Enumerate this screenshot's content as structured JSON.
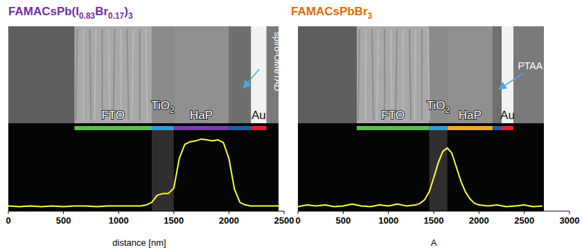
{
  "chart_data": [
    {
      "type": "line",
      "title": [
        {
          "text": "FAMACsPb(I",
          "sub": false
        },
        {
          "text": "0.83",
          "sub": true
        },
        {
          "text": "Br",
          "sub": false
        },
        {
          "text": "0.17",
          "sub": true
        },
        {
          "text": ")",
          "sub": false
        },
        {
          "text": "3",
          "sub": true
        }
      ],
      "title_color": "#7030a0",
      "x_label": "distance [nm]",
      "xlim": [
        0,
        2500
      ],
      "xticks": [
        0,
        500,
        1000,
        1500,
        2000,
        2500
      ],
      "ylim": [
        0,
        100
      ],
      "tick_labels": "x",
      "x": [
        0,
        100,
        200,
        300,
        400,
        500,
        600,
        700,
        800,
        900,
        1000,
        1100,
        1200,
        1250,
        1300,
        1350,
        1400,
        1450,
        1500,
        1550,
        1600,
        1650,
        1700,
        1750,
        1800,
        1850,
        1900,
        1950,
        2000,
        2050,
        2100,
        2150,
        2200,
        2300,
        2400,
        2450
      ],
      "series": [
        {
          "color": "#ffff33",
          "values": [
            6,
            5,
            6,
            5,
            6,
            5,
            6,
            6,
            5,
            6,
            6,
            6,
            6,
            7,
            10,
            18,
            20,
            20,
            26,
            60,
            76,
            79,
            80,
            82,
            81,
            80,
            81,
            78,
            60,
            25,
            10,
            7,
            6,
            6,
            6,
            6
          ]
        }
      ],
      "layers": [
        {
          "label": [
            {
              "text": "FTO",
              "sub": false
            }
          ],
          "color": "#5cc14a",
          "start": 600,
          "end": 1300
        },
        {
          "label": [
            {
              "text": "TiO",
              "sub": false
            },
            {
              "text": "2",
              "sub": true
            }
          ],
          "color": "#2e9fdc",
          "start": 1300,
          "end": 1500
        },
        {
          "label": [
            {
              "text": "HaP",
              "sub": false
            }
          ],
          "color": "#7a3bb0",
          "start": 1500,
          "end": 2000
        },
        {
          "label": [
            {
              "text": "spiro-OMeTAD",
              "sub": false
            }
          ],
          "label_style": "vertical_callout",
          "color": "#1f5fa8",
          "start": 2000,
          "end": 2200
        },
        {
          "label": [
            {
              "text": "Au",
              "sub": false
            }
          ],
          "color": "#e8202a",
          "start": 2200,
          "end": 2340
        }
      ]
    },
    {
      "type": "line",
      "title": [
        {
          "text": "FAMACsPbBr",
          "sub": false
        },
        {
          "text": "3",
          "sub": true
        }
      ],
      "title_color": "#e36c09",
      "x_label": "A",
      "xlim": [
        0,
        3000
      ],
      "xticks": [
        0,
        500,
        1000,
        1500,
        2000,
        2500,
        3000
      ],
      "ylim": [
        0,
        100
      ],
      "tick_labels": "x",
      "x": [
        0,
        100,
        200,
        300,
        400,
        500,
        600,
        700,
        800,
        900,
        1000,
        1100,
        1200,
        1300,
        1350,
        1400,
        1450,
        1500,
        1550,
        1600,
        1650,
        1700,
        1750,
        1800,
        1850,
        1900,
        1950,
        2000,
        2100,
        2200,
        2300,
        2400,
        2500,
        2600,
        2700
      ],
      "series": [
        {
          "color": "#ffff33",
          "values": [
            5,
            7,
            6,
            7,
            5,
            6,
            8,
            6,
            5,
            7,
            6,
            8,
            6,
            7,
            9,
            13,
            22,
            38,
            55,
            68,
            72,
            66,
            50,
            34,
            22,
            14,
            9,
            7,
            6,
            7,
            5,
            6,
            7,
            5,
            6
          ]
        }
      ],
      "layers": [
        {
          "label": [
            {
              "text": "FTO",
              "sub": false
            }
          ],
          "color": "#5cc14a",
          "start": 650,
          "end": 1450
        },
        {
          "label": [
            {
              "text": "TiO",
              "sub": false
            },
            {
              "text": "2",
              "sub": true
            }
          ],
          "color": "#2e9fdc",
          "start": 1450,
          "end": 1650
        },
        {
          "label": [
            {
              "text": "HaP",
              "sub": false
            }
          ],
          "color": "#f5a623",
          "start": 1650,
          "end": 2150
        },
        {
          "label": [
            {
              "text": "PTAA",
              "sub": false
            }
          ],
          "label_style": "callout",
          "color": "#1f5fa8",
          "start": 2150,
          "end": 2250
        },
        {
          "label": [
            {
              "text": "Au",
              "sub": false
            }
          ],
          "color": "#e8202a",
          "start": 2250,
          "end": 2380
        }
      ]
    }
  ]
}
